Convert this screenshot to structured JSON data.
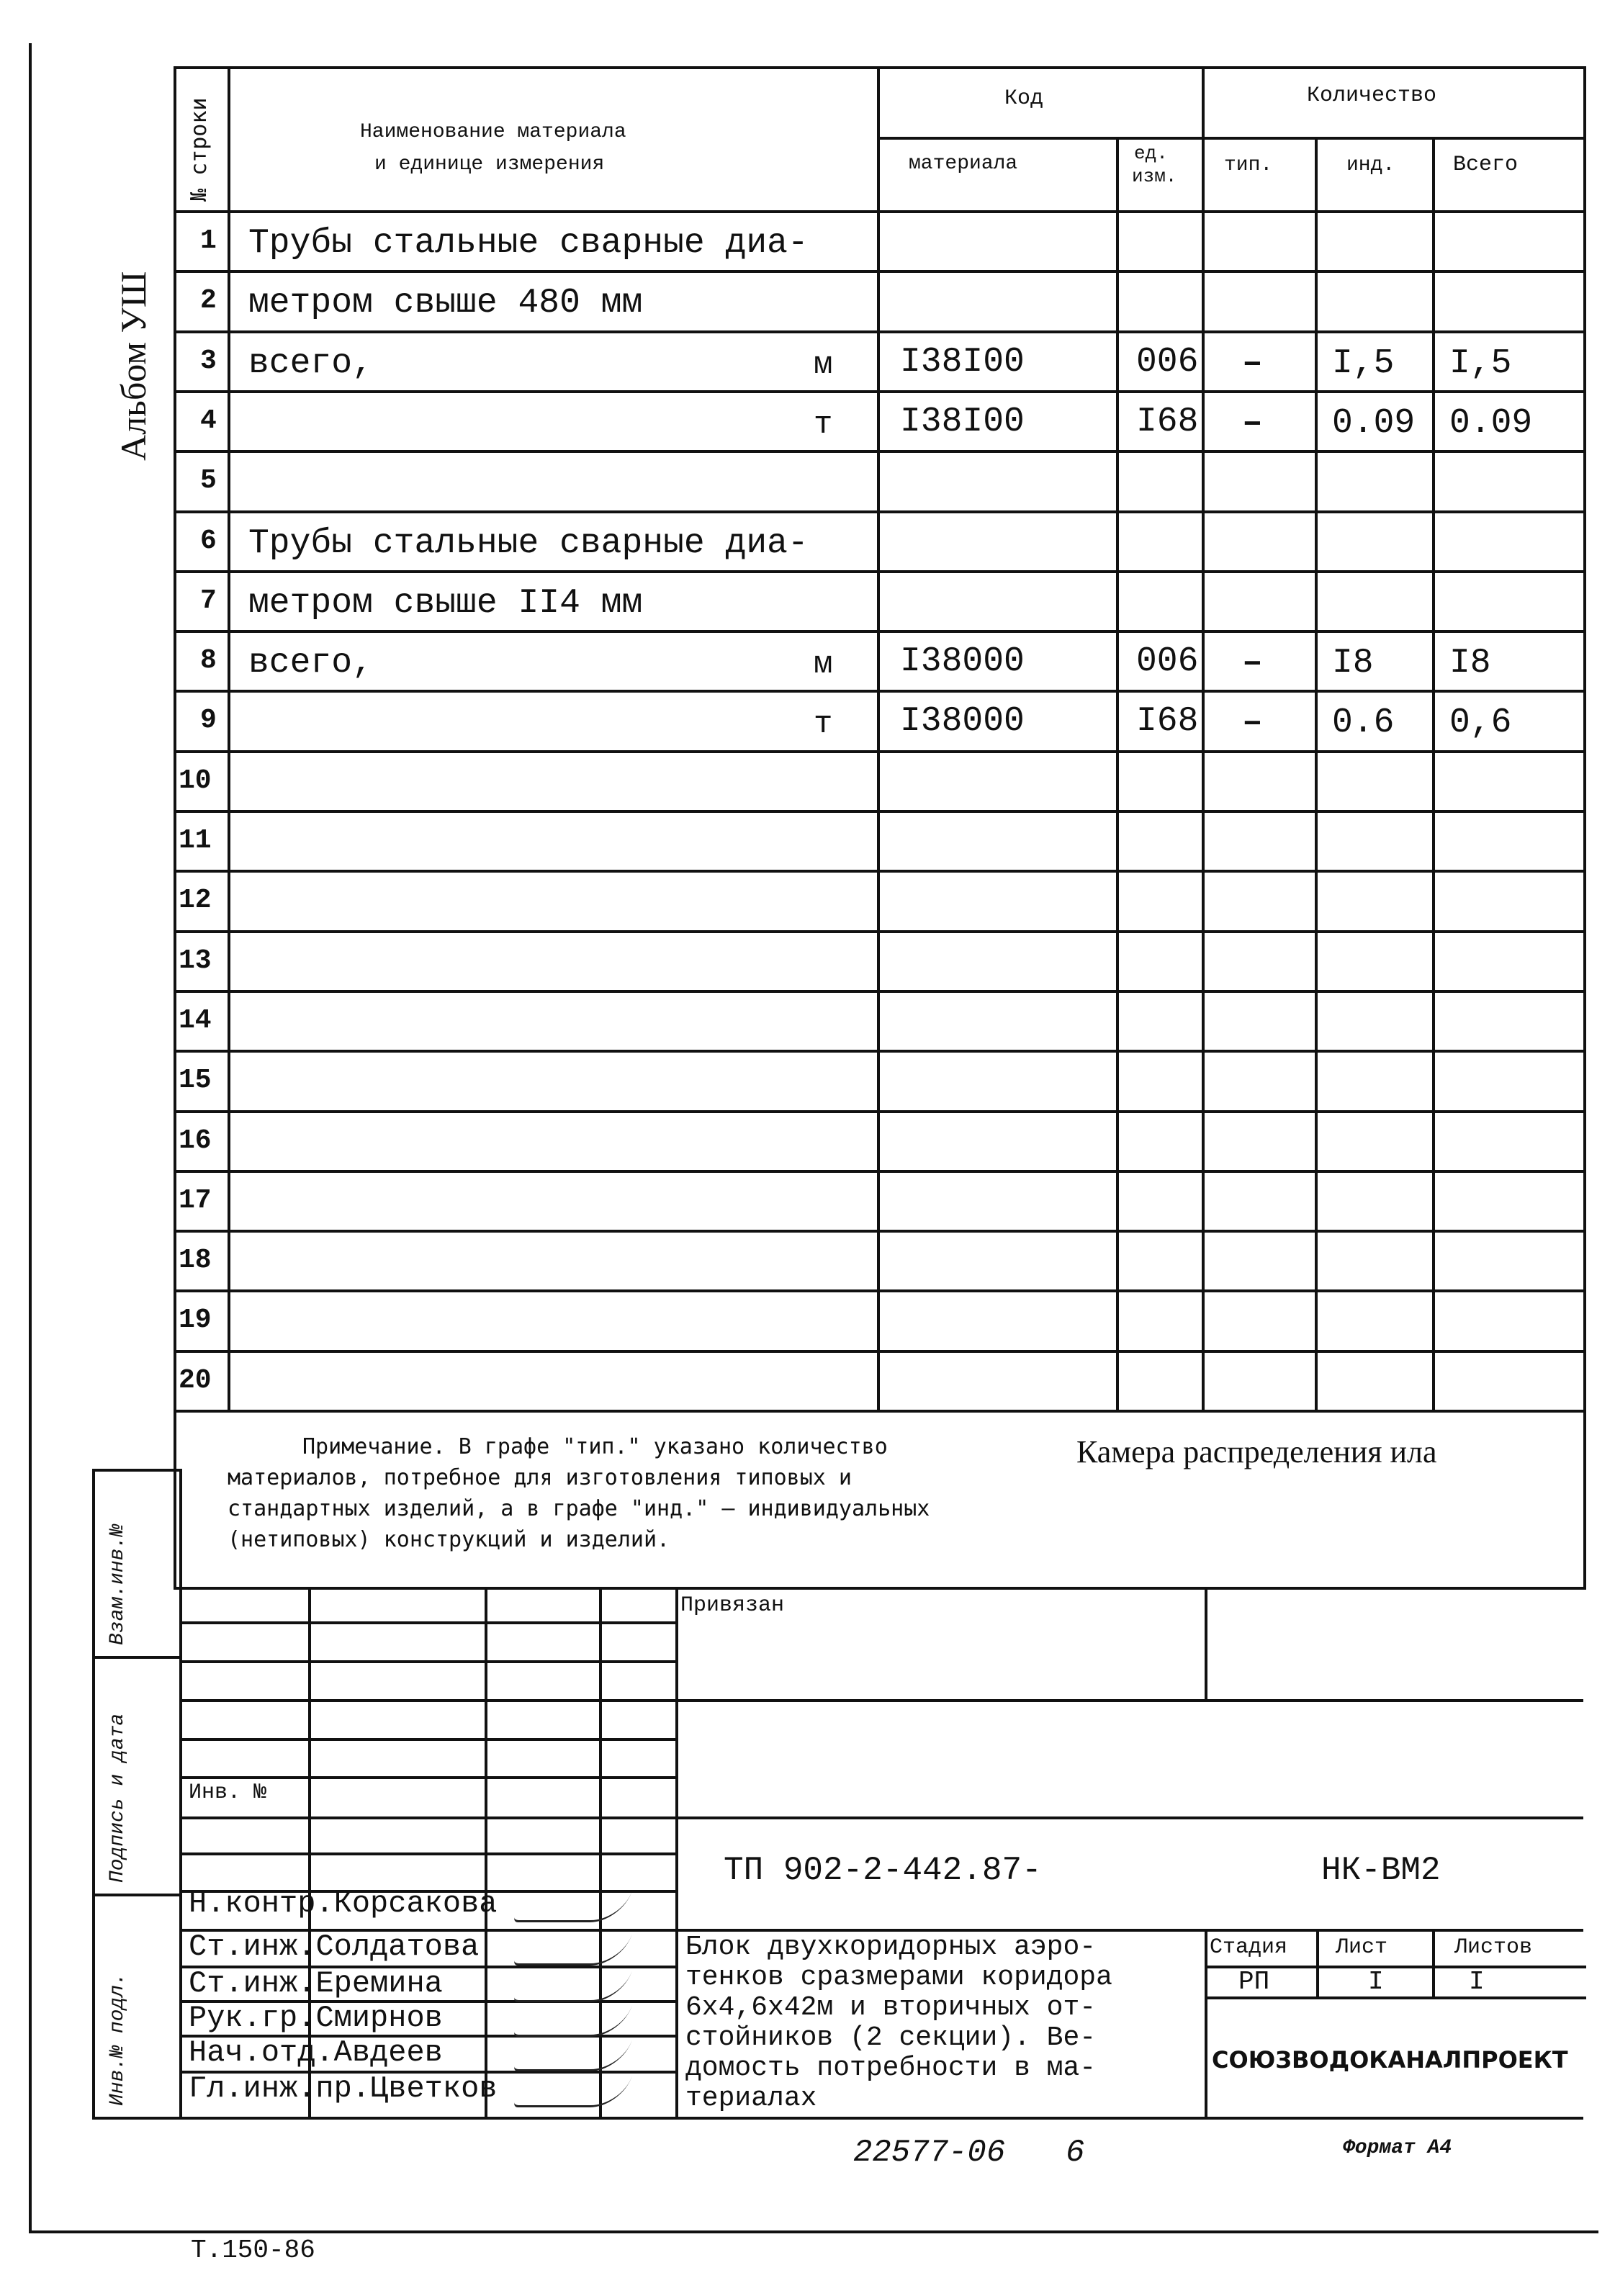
{
  "side": {
    "album": "Альбом УШ",
    "vzam": "Взам.инв.№",
    "podpis": "Подпись и дата",
    "inv_podl": "Инв.№ подл."
  },
  "header": {
    "row_no": "№ строки",
    "name_line1": "Наименование материала",
    "name_line2": "и единице измерения",
    "code": "Код",
    "code_material": "материала",
    "code_unit1": "ед.",
    "code_unit2": "изм.",
    "quantity": "Количество",
    "q_tip": "тип.",
    "q_ind": "инд.",
    "q_total": "Всего"
  },
  "rows": [
    {
      "n": "1",
      "name": "Трубы стальные сварные диа-",
      "u": "",
      "code": "",
      "ed": "",
      "tip": "",
      "ind": "",
      "total": ""
    },
    {
      "n": "2",
      "name": "метром свыше 480 мм",
      "u": "",
      "code": "",
      "ed": "",
      "tip": "",
      "ind": "",
      "total": ""
    },
    {
      "n": "3",
      "name": "всего,",
      "u": "м",
      "code": "I38I00",
      "ed": "006",
      "tip": "–",
      "ind": "I,5",
      "total": "I,5"
    },
    {
      "n": "4",
      "name": "",
      "u": "т",
      "code": "I38I00",
      "ed": "I68",
      "tip": "–",
      "ind": "0.09",
      "total": "0.09"
    },
    {
      "n": "5",
      "name": "",
      "u": "",
      "code": "",
      "ed": "",
      "tip": "",
      "ind": "",
      "total": ""
    },
    {
      "n": "6",
      "name": "Трубы стальные сварные диа-",
      "u": "",
      "code": "",
      "ed": "",
      "tip": "",
      "ind": "",
      "total": ""
    },
    {
      "n": "7",
      "name": "метром свыше II4 мм",
      "u": "",
      "code": "",
      "ed": "",
      "tip": "",
      "ind": "",
      "total": ""
    },
    {
      "n": "8",
      "name": "всего,",
      "u": "м",
      "code": "I38000",
      "ed": "006",
      "tip": "–",
      "ind": "I8",
      "total": "I8"
    },
    {
      "n": "9",
      "name": "",
      "u": "т",
      "code": "I38000",
      "ed": "I68",
      "tip": "–",
      "ind": "0.6",
      "total": "0,6"
    },
    {
      "n": "10",
      "name": "",
      "u": "",
      "code": "",
      "ed": "",
      "tip": "",
      "ind": "",
      "total": ""
    },
    {
      "n": "11",
      "name": "",
      "u": "",
      "code": "",
      "ed": "",
      "tip": "",
      "ind": "",
      "total": ""
    },
    {
      "n": "12",
      "name": "",
      "u": "",
      "code": "",
      "ed": "",
      "tip": "",
      "ind": "",
      "total": ""
    },
    {
      "n": "13",
      "name": "",
      "u": "",
      "code": "",
      "ed": "",
      "tip": "",
      "ind": "",
      "total": ""
    },
    {
      "n": "14",
      "name": "",
      "u": "",
      "code": "",
      "ed": "",
      "tip": "",
      "ind": "",
      "total": ""
    },
    {
      "n": "15",
      "name": "",
      "u": "",
      "code": "",
      "ed": "",
      "tip": "",
      "ind": "",
      "total": ""
    },
    {
      "n": "16",
      "name": "",
      "u": "",
      "code": "",
      "ed": "",
      "tip": "",
      "ind": "",
      "total": ""
    },
    {
      "n": "17",
      "name": "",
      "u": "",
      "code": "",
      "ed": "",
      "tip": "",
      "ind": "",
      "total": ""
    },
    {
      "n": "18",
      "name": "",
      "u": "",
      "code": "",
      "ed": "",
      "tip": "",
      "ind": "",
      "total": ""
    },
    {
      "n": "19",
      "name": "",
      "u": "",
      "code": "",
      "ed": "",
      "tip": "",
      "ind": "",
      "total": ""
    },
    {
      "n": "20",
      "name": "",
      "u": "",
      "code": "",
      "ed": "",
      "tip": "",
      "ind": "",
      "total": ""
    }
  ],
  "note": {
    "lines": [
      "Примечание. В графе \"тип.\" указано количество",
      "материалов, потребное  для изготовления типовых и",
      "стандартных изделий, а в графе \"инд.\" – индивидуальных",
      "(нетиповых) конструкций и изделий."
    ],
    "title": "Камера распределения ила"
  },
  "stamp": {
    "privyazan": "Привязан",
    "inv_no": "Инв. №",
    "doc_code": "ТП 902-2-442.87-",
    "sheet_code": "НК-ВМ2",
    "signers": [
      {
        "role": "Н.контр.",
        "name": "Корсакова"
      },
      {
        "role": "Ст.инж.",
        "name": "Солдатова"
      },
      {
        "role": "Ст.инж.",
        "name": "Еремина"
      },
      {
        "role": "Рук.гр.",
        "name": "Смирнов"
      },
      {
        "role": "Нач.отд.",
        "name": "Авдеев"
      },
      {
        "role": "Гл.инж.пр.",
        "name": "Цветков"
      }
    ],
    "description": [
      "Блок двухкоридорных аэро-",
      "тенков сразмерами коридора",
      "6х4,6х42м и вторичных от-",
      "стойников (2 секции). Ве-",
      "домость потребности в ма-",
      "териалах"
    ],
    "stage_label": "Стадия",
    "sheet_label": "Лист",
    "sheets_label": "Листов",
    "stage": "РП",
    "sheet": "I",
    "sheets": "I",
    "org": "СОЮЗВОДОКАНАЛПРОЕКТ"
  },
  "footer": {
    "inv_number": "22577-06",
    "page": "6",
    "format": "Формат А4",
    "form_code": "Т.150-86"
  }
}
